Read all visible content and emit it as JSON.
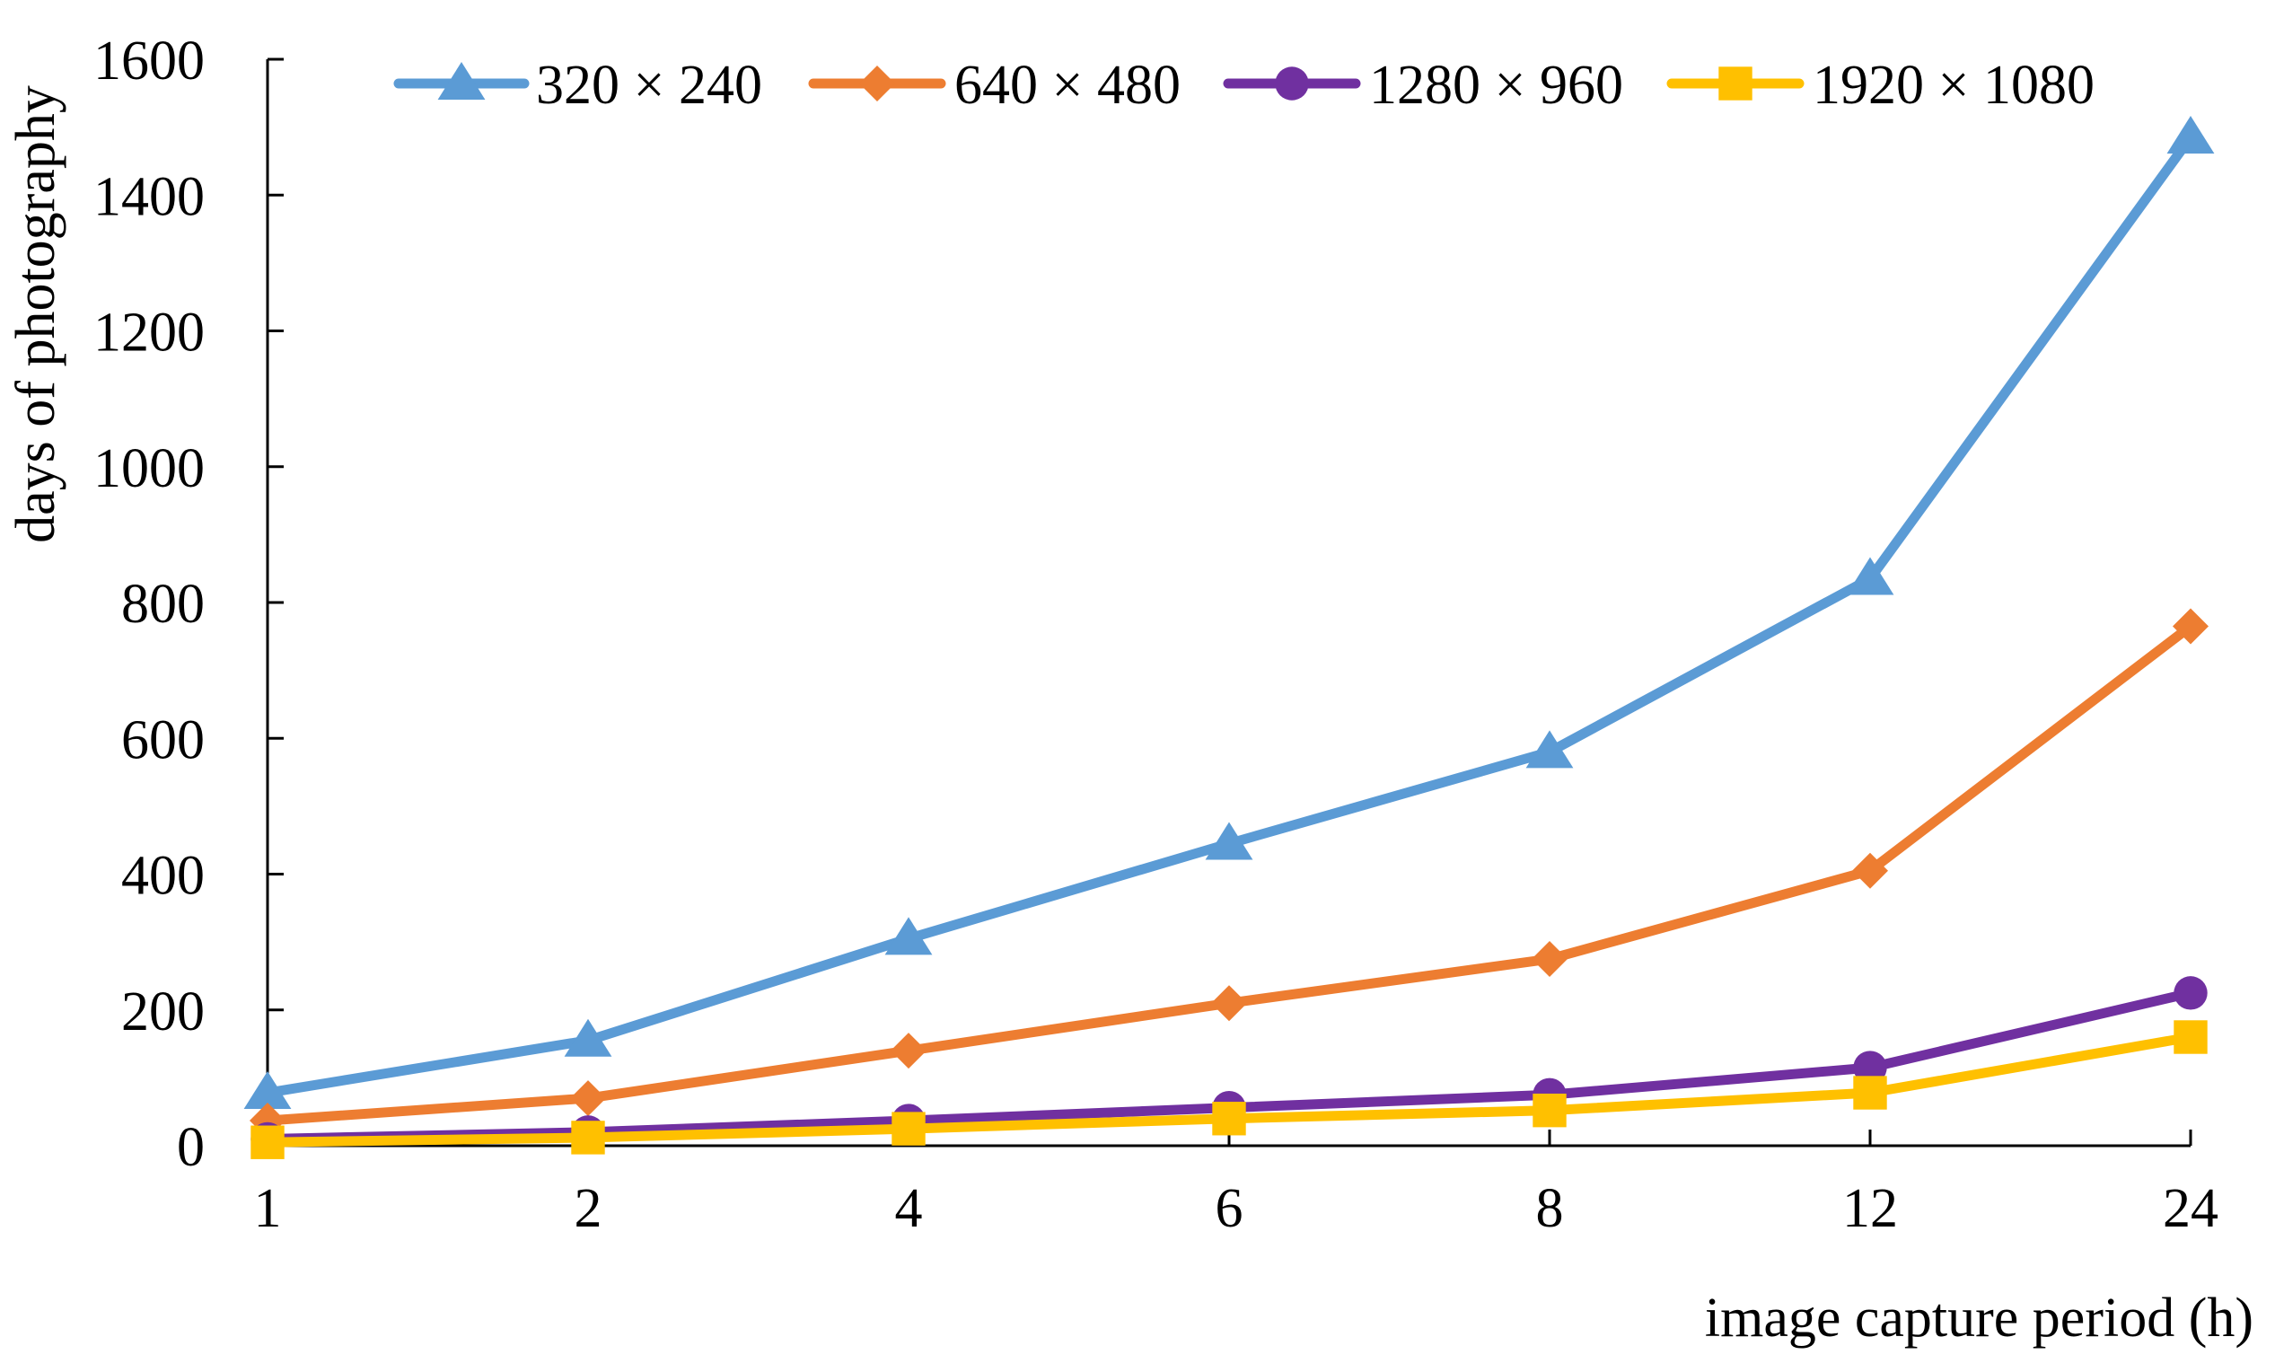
{
  "chart_data": {
    "type": "line",
    "title": "",
    "xlabel": "image capture period (h)",
    "ylabel": "days of photography",
    "categories": [
      "1",
      "2",
      "4",
      "6",
      "8",
      "12",
      "24"
    ],
    "ylim": [
      0,
      1600
    ],
    "yticks": [
      "0",
      "200",
      "400",
      "600",
      "800",
      "1000",
      "1200",
      "1400",
      "1600"
    ],
    "grid": false,
    "legend_position": "top",
    "series": [
      {
        "name": "320 × 240",
        "color": "#5B9BD5",
        "marker": "triangle",
        "values": [
          78,
          155,
          305,
          445,
          580,
          835,
          1485
        ]
      },
      {
        "name": "640 × 480",
        "color": "#ED7D31",
        "marker": "diamond",
        "values": [
          37,
          70,
          140,
          210,
          275,
          405,
          765
        ]
      },
      {
        "name": "1280 × 960",
        "color": "#7030A0",
        "marker": "circle",
        "values": [
          10,
          20,
          37,
          56,
          75,
          115,
          225
        ]
      },
      {
        "name": "1920 × 1080",
        "color": "#FFC000",
        "marker": "square",
        "values": [
          5,
          12,
          25,
          40,
          52,
          78,
          160
        ]
      }
    ]
  }
}
